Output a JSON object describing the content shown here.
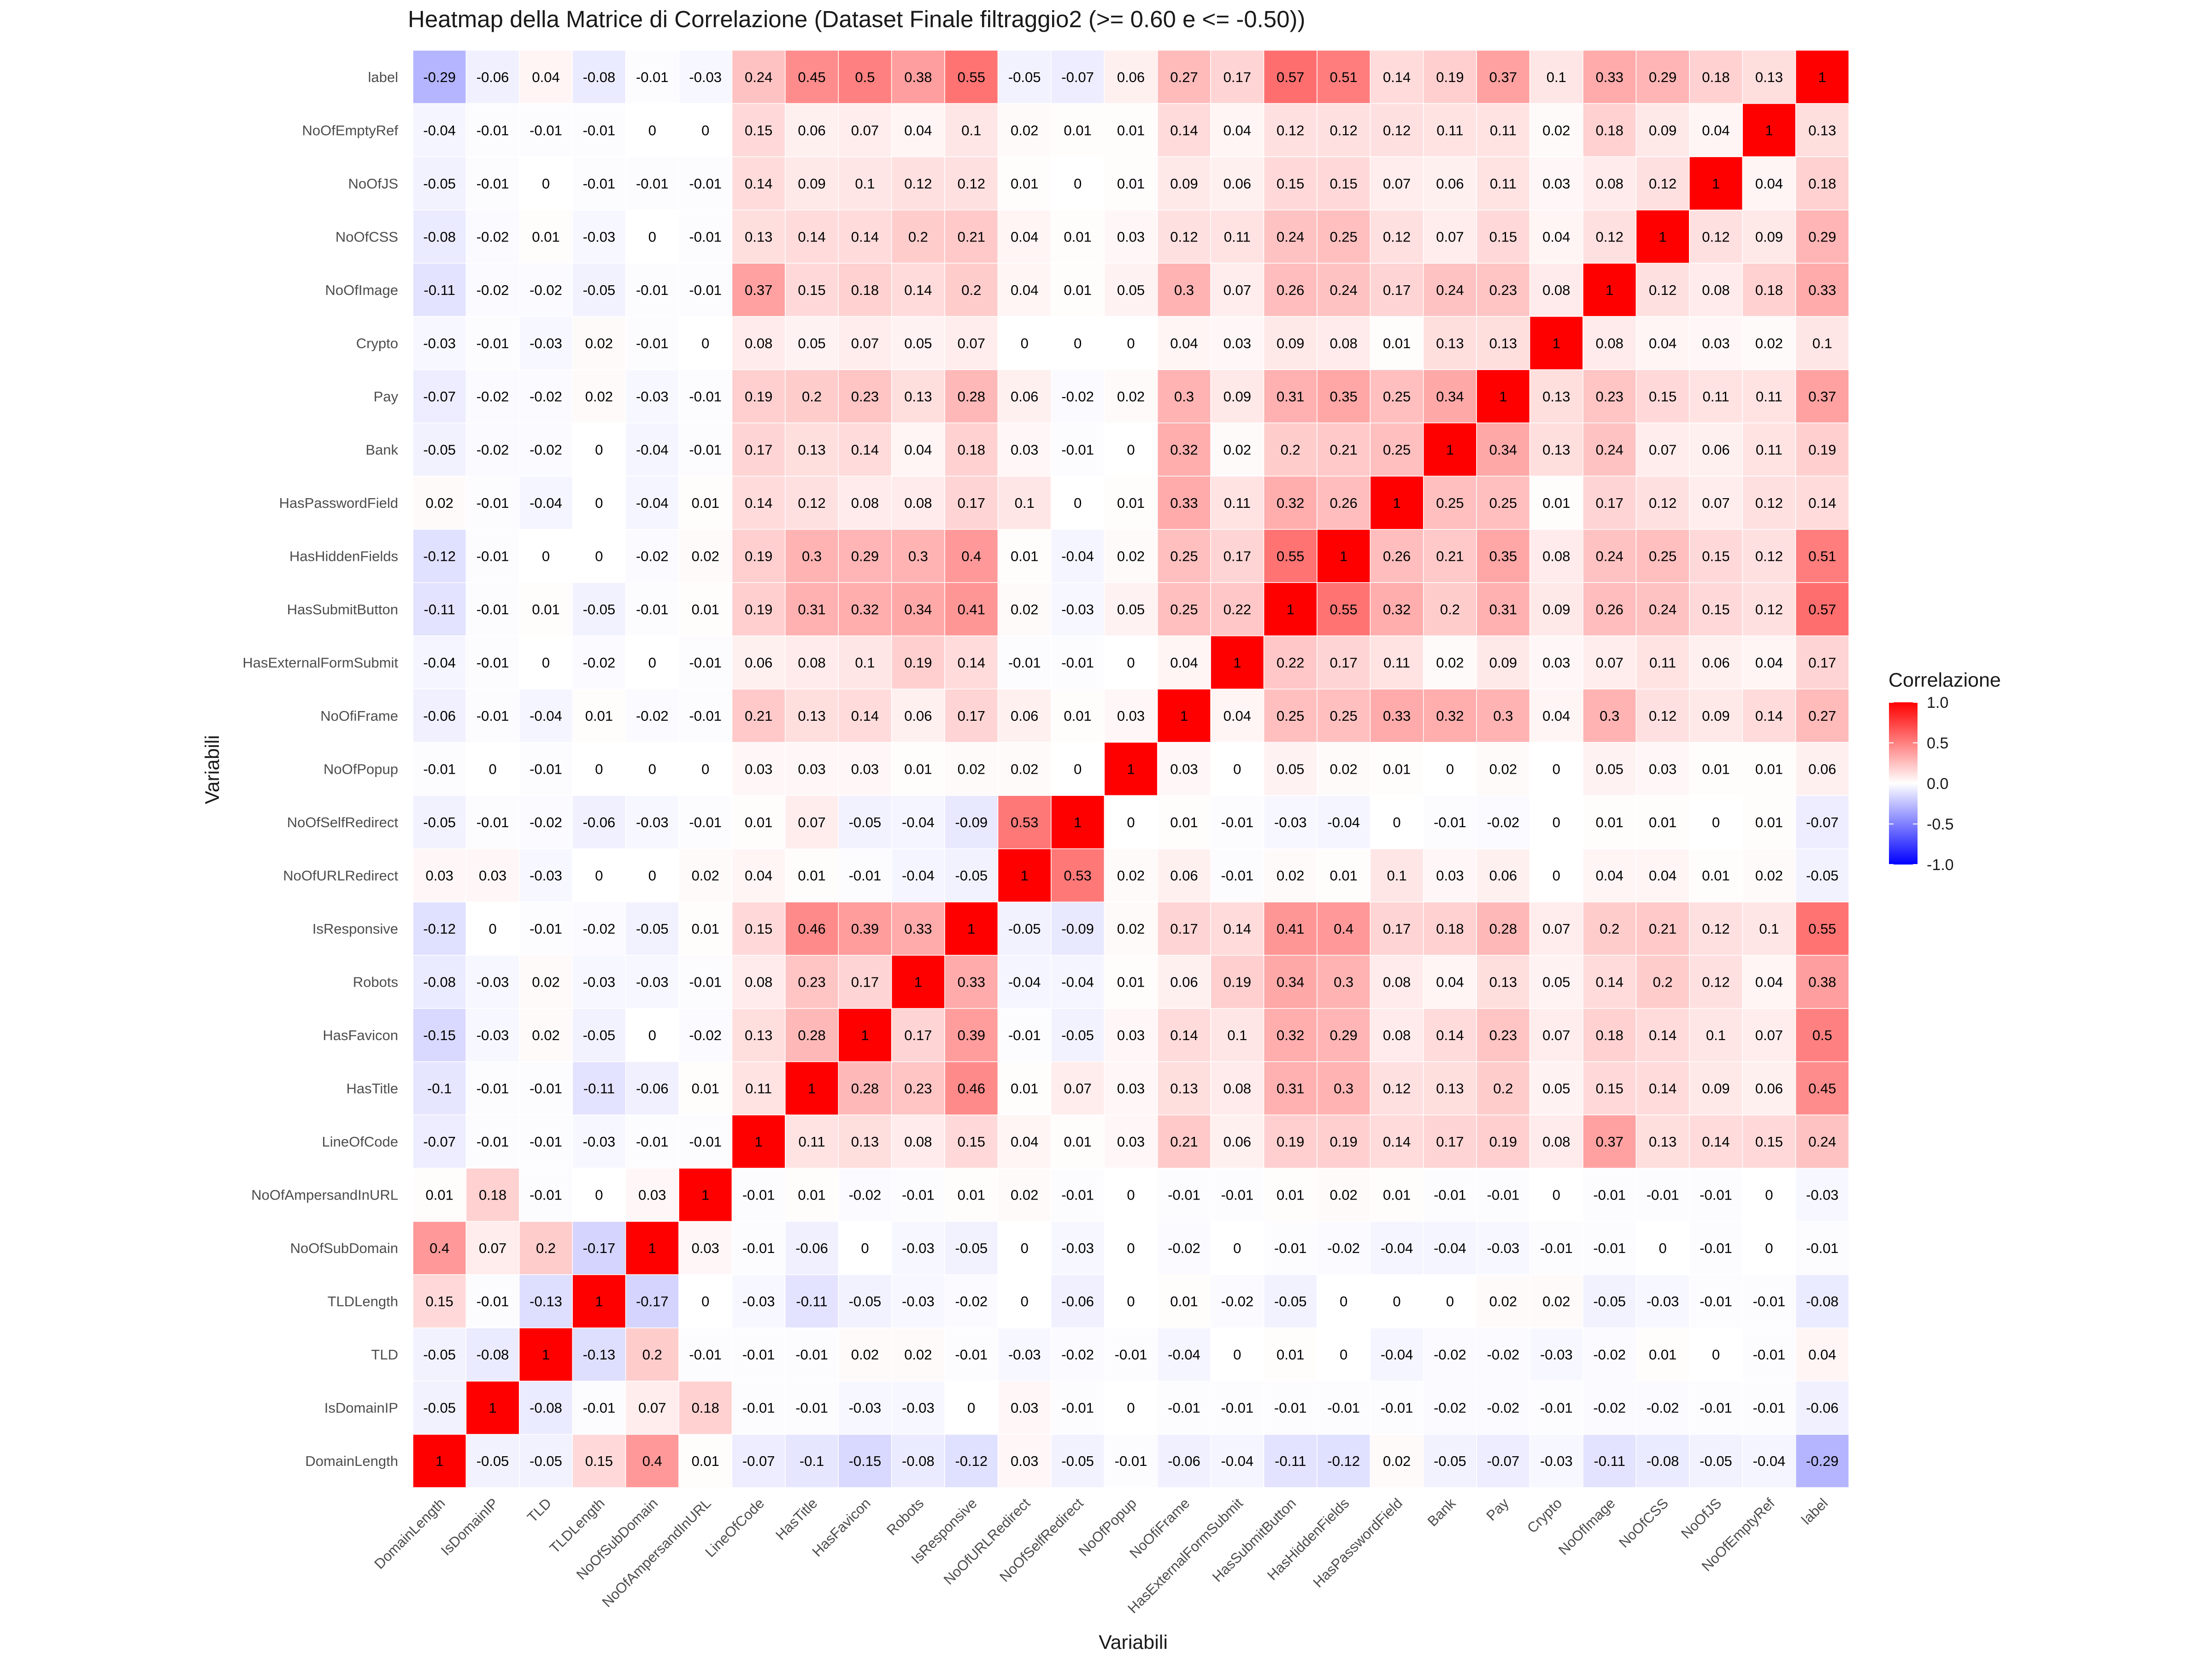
{
  "chart_data": {
    "type": "heatmap",
    "title": "Heatmap della Matrice di Correlazione (Dataset Finale filtraggio2 (>= 0.60 e <= -0.50))",
    "xlabel": "Variabili",
    "ylabel": "Variabili",
    "variables": [
      "DomainLength",
      "IsDomainIP",
      "TLD",
      "TLDLength",
      "NoOfSubDomain",
      "NoOfAmpersandInURL",
      "LineOfCode",
      "HasTitle",
      "HasFavicon",
      "Robots",
      "IsResponsive",
      "NoOfURLRedirect",
      "NoOfSelfRedirect",
      "NoOfPopup",
      "NoOfiFrame",
      "HasExternalFormSubmit",
      "HasSubmitButton",
      "HasHiddenFields",
      "HasPasswordField",
      "Bank",
      "Pay",
      "Crypto",
      "NoOfImage",
      "NoOfCSS",
      "NoOfJS",
      "NoOfEmptyRef",
      "label"
    ],
    "matrix": [
      [
        1,
        -0.05,
        -0.05,
        0.15,
        0.4,
        0.01,
        -0.07,
        -0.1,
        -0.15,
        -0.08,
        -0.12,
        0.03,
        -0.05,
        -0.01,
        -0.06,
        -0.04,
        -0.11,
        -0.12,
        0.02,
        -0.05,
        -0.07,
        -0.03,
        -0.11,
        -0.08,
        -0.05,
        -0.04,
        -0.29
      ],
      [
        -0.05,
        1,
        -0.08,
        -0.01,
        0.07,
        0.18,
        -0.01,
        -0.01,
        -0.03,
        -0.03,
        0,
        0.03,
        -0.01,
        0,
        -0.01,
        -0.01,
        -0.01,
        -0.01,
        -0.01,
        -0.02,
        -0.02,
        -0.01,
        -0.02,
        -0.02,
        -0.01,
        -0.01,
        -0.06
      ],
      [
        -0.05,
        -0.08,
        1,
        -0.13,
        0.2,
        -0.01,
        -0.01,
        -0.01,
        0.02,
        0.02,
        -0.01,
        -0.03,
        -0.02,
        -0.01,
        -0.04,
        0,
        0.01,
        0,
        -0.04,
        -0.02,
        -0.02,
        -0.03,
        -0.02,
        0.01,
        0,
        -0.01,
        0.04
      ],
      [
        0.15,
        -0.01,
        -0.13,
        1,
        -0.17,
        0,
        -0.03,
        -0.11,
        -0.05,
        -0.03,
        -0.02,
        0,
        -0.06,
        0,
        0.01,
        -0.02,
        -0.05,
        0,
        0,
        0,
        0.02,
        0.02,
        -0.05,
        -0.03,
        -0.01,
        -0.01,
        -0.08
      ],
      [
        0.4,
        0.07,
        0.2,
        -0.17,
        1,
        0.03,
        -0.01,
        -0.06,
        0,
        -0.03,
        -0.05,
        0,
        -0.03,
        0,
        -0.02,
        0,
        -0.01,
        -0.02,
        -0.04,
        -0.04,
        -0.03,
        -0.01,
        -0.01,
        0,
        -0.01,
        0,
        -0.01
      ],
      [
        0.01,
        0.18,
        -0.01,
        0,
        0.03,
        1,
        -0.01,
        0.01,
        -0.02,
        -0.01,
        0.01,
        0.02,
        -0.01,
        0,
        -0.01,
        -0.01,
        0.01,
        0.02,
        0.01,
        -0.01,
        -0.01,
        0,
        -0.01,
        -0.01,
        -0.01,
        0,
        -0.03
      ],
      [
        -0.07,
        -0.01,
        -0.01,
        -0.03,
        -0.01,
        -0.01,
        1,
        0.11,
        0.13,
        0.08,
        0.15,
        0.04,
        0.01,
        0.03,
        0.21,
        0.06,
        0.19,
        0.19,
        0.14,
        0.17,
        0.19,
        0.08,
        0.37,
        0.13,
        0.14,
        0.15,
        0.24
      ],
      [
        -0.1,
        -0.01,
        -0.01,
        -0.11,
        -0.06,
        0.01,
        0.11,
        1,
        0.28,
        0.23,
        0.46,
        0.01,
        0.07,
        0.03,
        0.13,
        0.08,
        0.31,
        0.3,
        0.12,
        0.13,
        0.2,
        0.05,
        0.15,
        0.14,
        0.09,
        0.06,
        0.45
      ],
      [
        -0.15,
        -0.03,
        0.02,
        -0.05,
        0,
        -0.02,
        0.13,
        0.28,
        1,
        0.17,
        0.39,
        -0.01,
        -0.05,
        0.03,
        0.14,
        0.1,
        0.32,
        0.29,
        0.08,
        0.14,
        0.23,
        0.07,
        0.18,
        0.14,
        0.1,
        0.07,
        0.5
      ],
      [
        -0.08,
        -0.03,
        0.02,
        -0.03,
        -0.03,
        -0.01,
        0.08,
        0.23,
        0.17,
        1,
        0.33,
        -0.04,
        -0.04,
        0.01,
        0.06,
        0.19,
        0.34,
        0.3,
        0.08,
        0.04,
        0.13,
        0.05,
        0.14,
        0.2,
        0.12,
        0.04,
        0.38
      ],
      [
        -0.12,
        0,
        -0.01,
        -0.02,
        -0.05,
        0.01,
        0.15,
        0.46,
        0.39,
        0.33,
        1,
        -0.05,
        -0.09,
        0.02,
        0.17,
        0.14,
        0.41,
        0.4,
        0.17,
        0.18,
        0.28,
        0.07,
        0.2,
        0.21,
        0.12,
        0.1,
        0.55
      ],
      [
        0.03,
        0.03,
        -0.03,
        0,
        0,
        0.02,
        0.04,
        0.01,
        -0.01,
        -0.04,
        -0.05,
        1,
        0.53,
        0.02,
        0.06,
        -0.01,
        0.02,
        0.01,
        0.1,
        0.03,
        0.06,
        0,
        0.04,
        0.04,
        0.01,
        0.02,
        -0.05
      ],
      [
        -0.05,
        -0.01,
        -0.02,
        -0.06,
        -0.03,
        -0.01,
        0.01,
        0.07,
        -0.05,
        -0.04,
        -0.09,
        0.53,
        1,
        0,
        0.01,
        -0.01,
        -0.03,
        -0.04,
        0,
        -0.01,
        -0.02,
        0,
        0.01,
        0.01,
        0,
        0.01,
        -0.07
      ],
      [
        -0.01,
        0,
        -0.01,
        0,
        0,
        0,
        0.03,
        0.03,
        0.03,
        0.01,
        0.02,
        0.02,
        0,
        1,
        0.03,
        0,
        0.05,
        0.02,
        0.01,
        0,
        0.02,
        0,
        0.05,
        0.03,
        0.01,
        0.01,
        0.06
      ],
      [
        -0.06,
        -0.01,
        -0.04,
        0.01,
        -0.02,
        -0.01,
        0.21,
        0.13,
        0.14,
        0.06,
        0.17,
        0.06,
        0.01,
        0.03,
        1,
        0.04,
        0.25,
        0.25,
        0.33,
        0.32,
        0.3,
        0.04,
        0.3,
        0.12,
        0.09,
        0.14,
        0.27
      ],
      [
        -0.04,
        -0.01,
        0,
        -0.02,
        0,
        -0.01,
        0.06,
        0.08,
        0.1,
        0.19,
        0.14,
        -0.01,
        -0.01,
        0,
        0.04,
        1,
        0.22,
        0.17,
        0.11,
        0.02,
        0.09,
        0.03,
        0.07,
        0.11,
        0.06,
        0.04,
        0.17
      ],
      [
        -0.11,
        -0.01,
        0.01,
        -0.05,
        -0.01,
        0.01,
        0.19,
        0.31,
        0.32,
        0.34,
        0.41,
        0.02,
        -0.03,
        0.05,
        0.25,
        0.22,
        1,
        0.55,
        0.32,
        0.2,
        0.31,
        0.09,
        0.26,
        0.24,
        0.15,
        0.12,
        0.57
      ],
      [
        -0.12,
        -0.01,
        0,
        0,
        -0.02,
        0.02,
        0.19,
        0.3,
        0.29,
        0.3,
        0.4,
        0.01,
        -0.04,
        0.02,
        0.25,
        0.17,
        0.55,
        1,
        0.26,
        0.21,
        0.35,
        0.08,
        0.24,
        0.25,
        0.15,
        0.12,
        0.51
      ],
      [
        0.02,
        -0.01,
        -0.04,
        0,
        -0.04,
        0.01,
        0.14,
        0.12,
        0.08,
        0.08,
        0.17,
        0.1,
        0,
        0.01,
        0.33,
        0.11,
        0.32,
        0.26,
        1,
        0.25,
        0.25,
        0.01,
        0.17,
        0.12,
        0.07,
        0.12,
        0.14
      ],
      [
        -0.05,
        -0.02,
        -0.02,
        0,
        -0.04,
        -0.01,
        0.17,
        0.13,
        0.14,
        0.04,
        0.18,
        0.03,
        -0.01,
        0,
        0.32,
        0.02,
        0.2,
        0.21,
        0.25,
        1,
        0.34,
        0.13,
        0.24,
        0.07,
        0.06,
        0.11,
        0.19
      ],
      [
        -0.07,
        -0.02,
        -0.02,
        0.02,
        -0.03,
        -0.01,
        0.19,
        0.2,
        0.23,
        0.13,
        0.28,
        0.06,
        -0.02,
        0.02,
        0.3,
        0.09,
        0.31,
        0.35,
        0.25,
        0.34,
        1,
        0.13,
        0.23,
        0.15,
        0.11,
        0.11,
        0.37
      ],
      [
        -0.03,
        -0.01,
        -0.03,
        0.02,
        -0.01,
        0,
        0.08,
        0.05,
        0.07,
        0.05,
        0.07,
        0,
        0,
        0,
        0.04,
        0.03,
        0.09,
        0.08,
        0.01,
        0.13,
        0.13,
        1,
        0.08,
        0.04,
        0.03,
        0.02,
        0.1
      ],
      [
        -0.11,
        -0.02,
        -0.02,
        -0.05,
        -0.01,
        -0.01,
        0.37,
        0.15,
        0.18,
        0.14,
        0.2,
        0.04,
        0.01,
        0.05,
        0.3,
        0.07,
        0.26,
        0.24,
        0.17,
        0.24,
        0.23,
        0.08,
        1,
        0.12,
        0.08,
        0.18,
        0.33
      ],
      [
        -0.08,
        -0.02,
        0.01,
        -0.03,
        0,
        -0.01,
        0.13,
        0.14,
        0.14,
        0.2,
        0.21,
        0.04,
        0.01,
        0.03,
        0.12,
        0.11,
        0.24,
        0.25,
        0.12,
        0.07,
        0.15,
        0.04,
        0.12,
        1,
        0.12,
        0.09,
        0.29
      ],
      [
        -0.05,
        -0.01,
        0,
        -0.01,
        -0.01,
        -0.01,
        0.14,
        0.09,
        0.1,
        0.12,
        0.12,
        0.01,
        0,
        0.01,
        0.09,
        0.06,
        0.15,
        0.15,
        0.07,
        0.06,
        0.11,
        0.03,
        0.08,
        0.12,
        1,
        0.04,
        0.18
      ],
      [
        -0.04,
        -0.01,
        -0.01,
        -0.01,
        0,
        0,
        0.15,
        0.06,
        0.07,
        0.04,
        0.1,
        0.02,
        0.01,
        0.01,
        0.14,
        0.04,
        0.12,
        0.12,
        0.12,
        0.11,
        0.11,
        0.02,
        0.18,
        0.09,
        0.04,
        1,
        0.13
      ],
      [
        -0.29,
        -0.06,
        0.04,
        -0.08,
        -0.01,
        -0.03,
        0.24,
        0.45,
        0.5,
        0.38,
        0.55,
        -0.05,
        -0.07,
        0.06,
        0.27,
        0.17,
        0.57,
        0.51,
        0.14,
        0.19,
        0.37,
        0.1,
        0.33,
        0.29,
        0.18,
        0.13,
        1
      ]
    ],
    "zlim": [
      -1,
      1
    ],
    "colors": {
      "low": "#0000FF",
      "mid": "#FFFFFF",
      "high": "#FF0000"
    },
    "legend": {
      "title": "Correlazione",
      "ticks": [
        "1.0",
        "0.5",
        "0.0",
        "-0.5",
        "-1.0"
      ],
      "tick_values": [
        1,
        0.5,
        0,
        -0.5,
        -1
      ],
      "placement": "right"
    },
    "grid": false
  }
}
